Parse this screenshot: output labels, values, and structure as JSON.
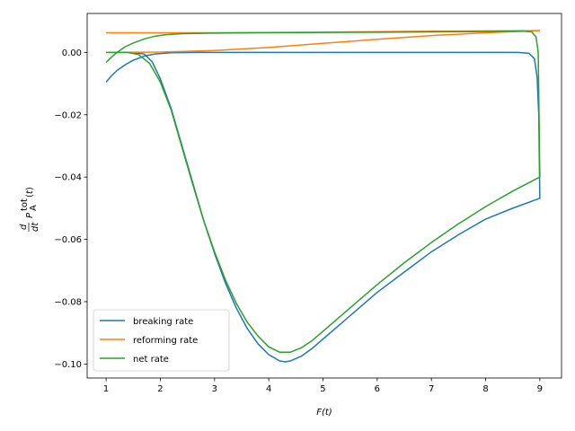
{
  "chart_data": {
    "type": "line",
    "xlabel": "F(t)",
    "ylabel": "d/dt P_A^tot(t)",
    "xlim": [
      0.65,
      9.4
    ],
    "ylim": [
      -0.1045,
      0.0125
    ],
    "xticks": [
      1,
      2,
      3,
      4,
      5,
      6,
      7,
      8,
      9
    ],
    "yticks": [
      0.0,
      -0.02,
      -0.04,
      -0.06,
      -0.08,
      -0.1
    ],
    "ytick_labels": [
      "0.00",
      "−0.02",
      "−0.04",
      "−0.06",
      "−0.08",
      "−0.10"
    ],
    "grid": false,
    "legend_position": "lower-left",
    "series": [
      {
        "name": "breaking rate",
        "color": "#1f77b4",
        "curves": [
          [
            [
              1.0,
              -0.0095
            ],
            [
              1.1,
              -0.0075
            ],
            [
              1.2,
              -0.0058
            ],
            [
              1.35,
              -0.004
            ],
            [
              1.5,
              -0.0025
            ],
            [
              1.7,
              -0.0012
            ],
            [
              1.9,
              -0.0005
            ],
            [
              2.2,
              -0.0001
            ],
            [
              2.6,
              0.0
            ],
            [
              3.5,
              0.0
            ],
            [
              5.0,
              0.0
            ],
            [
              7.0,
              0.0
            ],
            [
              8.0,
              0.0
            ],
            [
              8.6,
              0.0
            ],
            [
              8.8,
              -0.0003
            ],
            [
              8.9,
              -0.002
            ],
            [
              8.95,
              -0.008
            ],
            [
              8.98,
              -0.02
            ],
            [
              9.0,
              -0.047
            ]
          ],
          [
            [
              1.25,
              0.0
            ],
            [
              1.5,
              0.0
            ],
            [
              1.7,
              -0.0005
            ],
            [
              1.85,
              -0.003
            ],
            [
              2.0,
              -0.0085
            ],
            [
              2.2,
              -0.018
            ],
            [
              2.4,
              -0.03
            ],
            [
              2.6,
              -0.042
            ],
            [
              2.8,
              -0.054
            ],
            [
              3.0,
              -0.0645
            ],
            [
              3.2,
              -0.074
            ],
            [
              3.4,
              -0.082
            ],
            [
              3.6,
              -0.0885
            ],
            [
              3.8,
              -0.0935
            ],
            [
              4.0,
              -0.097
            ],
            [
              4.2,
              -0.099
            ],
            [
              4.3,
              -0.0993
            ],
            [
              4.4,
              -0.099
            ],
            [
              4.6,
              -0.0975
            ],
            [
              4.8,
              -0.095
            ],
            [
              5.0,
              -0.092
            ],
            [
              5.3,
              -0.0875
            ],
            [
              5.6,
              -0.083
            ],
            [
              6.0,
              -0.077
            ],
            [
              6.5,
              -0.0705
            ],
            [
              7.0,
              -0.064
            ],
            [
              7.5,
              -0.0585
            ],
            [
              8.0,
              -0.0535
            ],
            [
              8.5,
              -0.05
            ],
            [
              9.0,
              -0.0468
            ]
          ]
        ]
      },
      {
        "name": "reforming rate",
        "color": "#ff7f0e",
        "curves": [
          [
            [
              1.0,
              0.0063
            ],
            [
              3.0,
              0.0063
            ],
            [
              5.0,
              0.0065
            ],
            [
              7.0,
              0.0068
            ],
            [
              8.0,
              0.0069
            ],
            [
              9.0,
              0.007
            ]
          ],
          [
            [
              1.0,
              0.0
            ],
            [
              2.0,
              0.0001
            ],
            [
              3.0,
              0.0006
            ],
            [
              4.0,
              0.0016
            ],
            [
              5.0,
              0.0029
            ],
            [
              6.0,
              0.0042
            ],
            [
              7.0,
              0.0054
            ],
            [
              8.0,
              0.0063
            ],
            [
              8.7,
              0.0068
            ],
            [
              9.0,
              0.007
            ]
          ]
        ]
      },
      {
        "name": "net rate",
        "color": "#2ca02c",
        "curves": [
          [
            [
              1.0,
              -0.0032
            ],
            [
              1.1,
              -0.0015
            ],
            [
              1.2,
              0.0
            ],
            [
              1.35,
              0.0018
            ],
            [
              1.5,
              0.003
            ],
            [
              1.7,
              0.0043
            ],
            [
              1.9,
              0.0052
            ],
            [
              2.1,
              0.0057
            ],
            [
              2.4,
              0.006
            ],
            [
              3.0,
              0.0062
            ],
            [
              4.0,
              0.0063
            ],
            [
              5.0,
              0.0064
            ],
            [
              6.0,
              0.0065
            ],
            [
              7.0,
              0.0066
            ],
            [
              8.0,
              0.0067
            ],
            [
              8.5,
              0.0068
            ],
            [
              8.7,
              0.0068
            ],
            [
              8.85,
              0.0066
            ],
            [
              8.93,
              0.005
            ],
            [
              8.97,
              0.0
            ],
            [
              9.0,
              -0.04
            ]
          ],
          [
            [
              1.0,
              0.0
            ],
            [
              1.4,
              0.0
            ],
            [
              1.6,
              -0.0007
            ],
            [
              1.8,
              -0.0035
            ],
            [
              2.0,
              -0.0095
            ],
            [
              2.2,
              -0.0185
            ],
            [
              2.4,
              -0.0305
            ],
            [
              2.6,
              -0.0425
            ],
            [
              2.8,
              -0.054
            ],
            [
              3.0,
              -0.064
            ],
            [
              3.2,
              -0.073
            ],
            [
              3.4,
              -0.0805
            ],
            [
              3.6,
              -0.0865
            ],
            [
              3.8,
              -0.091
            ],
            [
              4.0,
              -0.0945
            ],
            [
              4.2,
              -0.0962
            ],
            [
              4.4,
              -0.0962
            ],
            [
              4.6,
              -0.0948
            ],
            [
              4.8,
              -0.0925
            ],
            [
              5.0,
              -0.0895
            ],
            [
              5.3,
              -0.085
            ],
            [
              5.6,
              -0.0805
            ],
            [
              6.0,
              -0.0745
            ],
            [
              6.5,
              -0.0675
            ],
            [
              7.0,
              -0.061
            ],
            [
              7.5,
              -0.055
            ],
            [
              8.0,
              -0.0495
            ],
            [
              8.5,
              -0.0445
            ],
            [
              9.0,
              -0.04
            ]
          ]
        ]
      }
    ]
  }
}
